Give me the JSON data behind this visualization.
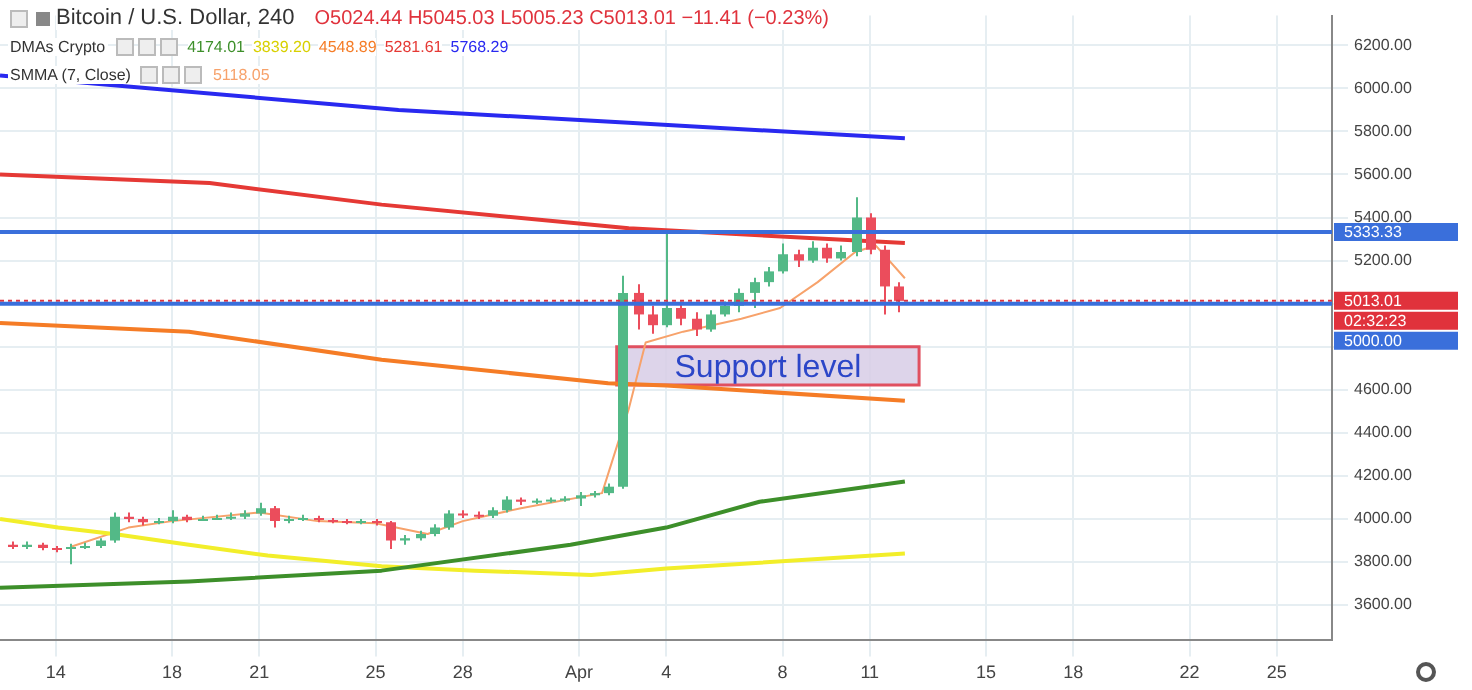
{
  "chart_data": {
    "type": "candlestick",
    "title": "Bitcoin / U.S. Dollar, 240",
    "subtitle": "O5024.44 H5045.03 L5005.23 C5013.01 −11.41 (−0.23%)",
    "x": [
      "--03-12T12:00",
      "--03-13",
      "--03-13T12:00",
      "--03-14",
      "--03-14T12:00",
      "--03-15",
      "--03-15T12:00",
      "--03-16",
      "--03-16T12:00",
      "--03-17",
      "--03-17T12:00",
      "--03-18",
      "--03-18T12:00",
      "--03-19",
      "--03-19T12:00",
      "--03-20",
      "--03-20T12:00",
      "--03-21",
      "--03-21T12:00",
      "--03-22",
      "--03-22T12:00",
      "--03-23",
      "--03-23T12:00",
      "--03-24",
      "--03-24T12:00",
      "--03-25",
      "--03-25T12:00",
      "--03-26",
      "--03-26T12:00",
      "--03-27",
      "--03-27T12:00",
      "--03-28",
      "--03-28T12:00",
      "--03-29",
      "--03-29T12:00",
      "--03-30",
      "--03-30T12:00",
      "--03-31",
      "--03-31T12:00",
      "--04-01",
      "--04-01T12:00",
      "--04-02",
      "--04-02T12:00",
      "--04-03",
      "--04-03T12:00",
      "--04-04",
      "--04-04T12:00",
      "--04-05",
      "--04-05T12:00",
      "--04-06",
      "--04-06T12:00",
      "--04-07",
      "--04-07T12:00",
      "--04-08",
      "--04-08T12:00",
      "--04-09",
      "--04-09T12:00",
      "--04-10",
      "--04-10T12:00",
      "--04-11",
      "--04-11T12:00",
      "--04-12"
    ],
    "ohlc": [
      [
        3880,
        3895,
        3860,
        3870
      ],
      [
        3870,
        3895,
        3860,
        3880
      ],
      [
        3880,
        3890,
        3855,
        3865
      ],
      [
        3865,
        3875,
        3845,
        3860
      ],
      [
        3860,
        3885,
        3790,
        3870
      ],
      [
        3870,
        3890,
        3860,
        3875
      ],
      [
        3875,
        3910,
        3865,
        3900
      ],
      [
        3900,
        4030,
        3890,
        4010
      ],
      [
        4010,
        4030,
        3985,
        4000
      ],
      [
        4000,
        4010,
        3970,
        3985
      ],
      [
        3985,
        4005,
        3975,
        3990
      ],
      [
        3990,
        4040,
        3980,
        4010
      ],
      [
        4010,
        4020,
        3985,
        3995
      ],
      [
        3995,
        4015,
        3990,
        4000
      ],
      [
        4000,
        4020,
        3995,
        4005
      ],
      [
        4005,
        4030,
        3995,
        4010
      ],
      [
        4010,
        4040,
        4000,
        4025
      ],
      [
        4025,
        4075,
        4015,
        4050
      ],
      [
        4050,
        4060,
        3960,
        3990
      ],
      [
        3990,
        4015,
        3980,
        4000
      ],
      [
        4000,
        4020,
        3990,
        4005
      ],
      [
        4005,
        4015,
        3985,
        3995
      ],
      [
        3995,
        4005,
        3980,
        3990
      ],
      [
        3990,
        4000,
        3975,
        3985
      ],
      [
        3985,
        4000,
        3975,
        3990
      ],
      [
        3990,
        4000,
        3970,
        3985
      ],
      [
        3985,
        3990,
        3860,
        3900
      ],
      [
        3900,
        3925,
        3880,
        3910
      ],
      [
        3910,
        3945,
        3900,
        3930
      ],
      [
        3930,
        3975,
        3920,
        3960
      ],
      [
        3960,
        4040,
        3950,
        4025
      ],
      [
        4025,
        4040,
        4005,
        4020
      ],
      [
        4020,
        4035,
        4000,
        4015
      ],
      [
        4015,
        4055,
        4005,
        4040
      ],
      [
        4040,
        4105,
        4030,
        4090
      ],
      [
        4090,
        4100,
        4065,
        4080
      ],
      [
        4080,
        4095,
        4070,
        4085
      ],
      [
        4085,
        4100,
        4075,
        4090
      ],
      [
        4090,
        4105,
        4080,
        4095
      ],
      [
        4095,
        4125,
        4060,
        4110
      ],
      [
        4110,
        4130,
        4100,
        4120
      ],
      [
        4120,
        4165,
        4110,
        4150
      ],
      [
        4150,
        5130,
        4140,
        5050
      ],
      [
        5050,
        5090,
        4880,
        4950
      ],
      [
        4950,
        4990,
        4860,
        4900
      ],
      [
        4900,
        5340,
        4890,
        4980
      ],
      [
        4980,
        5010,
        4900,
        4930
      ],
      [
        4930,
        4960,
        4850,
        4880
      ],
      [
        4880,
        4970,
        4870,
        4950
      ],
      [
        4950,
        5010,
        4940,
        4990
      ],
      [
        4990,
        5070,
        4960,
        5050
      ],
      [
        5050,
        5120,
        4980,
        5100
      ],
      [
        5100,
        5170,
        5080,
        5150
      ],
      [
        5150,
        5280,
        5140,
        5230
      ],
      [
        5230,
        5250,
        5170,
        5200
      ],
      [
        5200,
        5290,
        5190,
        5260
      ],
      [
        5260,
        5280,
        5190,
        5210
      ],
      [
        5210,
        5270,
        5200,
        5240
      ],
      [
        5240,
        5494,
        5220,
        5400
      ],
      [
        5400,
        5420,
        5230,
        5250
      ],
      [
        5250,
        5270,
        4950,
        5080
      ],
      [
        5080,
        5100,
        4960,
        5013.01
      ]
    ],
    "series": [
      {
        "type": "line",
        "color": "#3d8f2a",
        "x": [
          "--03-12T02:00",
          "--03-18T14:00",
          "--03-25T05:00",
          "--03-31T17:00",
          "--04-04",
          "--04-07T05:00",
          "--04-12T05:00"
        ],
        "values": [
          3680,
          3710,
          3760,
          3880,
          3960,
          4080,
          4174.01
        ]
      },
      {
        "type": "line",
        "color": "#f2ee2a",
        "x": [
          "--03-12T02:00",
          "--03-14T02:00",
          "--03-16",
          "--03-18T14:00",
          "--03-21T07:00",
          "--03-25T05:00",
          "--03-28T10:00",
          "--04-01T10:00",
          "--04-04",
          "--04-12T05:00"
        ],
        "values": [
          4000,
          3960,
          3930,
          3880,
          3830,
          3780,
          3760,
          3740,
          3770,
          3839.2
        ]
      },
      {
        "type": "line",
        "color": "#f57c26",
        "x": [
          "--03-12T02:00",
          "--03-18T14:00",
          "--03-25T05:00",
          "--04-02",
          "--04-04",
          "--04-12T05:00"
        ],
        "values": [
          4910,
          4870,
          4740,
          4630,
          4620,
          4548.89
        ]
      },
      {
        "type": "line",
        "color": "#e53935",
        "x": [
          "--03-12T02:00",
          "--03-19T07:00",
          "--03-25T05:00",
          "--04-02T17:00",
          "--04-12T05:00"
        ],
        "values": [
          5600,
          5560,
          5460,
          5350,
          5281.61
        ]
      },
      {
        "type": "line",
        "color": "#2929f0",
        "x": [
          "--03-12T02:00",
          "--03-25T19:00",
          "--04-02T17:00",
          "--04-12T05:00"
        ],
        "values": [
          6060,
          5900,
          5840,
          5768.29
        ]
      },
      {
        "type": "line",
        "color": "#f7a26b",
        "x": [
          "--03-14T12:00",
          "--03-16T12:00",
          "--03-18",
          "--03-21",
          "--03-23",
          "--03-25",
          "--03-26T19:00",
          "--03-28",
          "--03-30",
          "--04-01T19:00",
          "--04-02T17:00",
          "--04-03T07:00",
          "--04-04T14:00",
          "--04-06T14:00",
          "--04-07T22:00",
          "--04-09T05:00",
          "--04-10T12:00",
          "--04-11T05:00",
          "--04-12T05:00"
        ],
        "values": [
          3870,
          3960,
          3990,
          4030,
          3990,
          3980,
          3930,
          3990,
          4050,
          4120,
          4510,
          4820,
          4870,
          4930,
          4980,
          5100,
          5240,
          5270,
          5118.05
        ]
      }
    ],
    "xlim": [
      "--03-12T02:00",
      "--04-26T21:36"
    ],
    "xticks": [
      {
        "value": "--03-14",
        "label": "14"
      },
      {
        "value": "--03-18",
        "label": "18"
      },
      {
        "value": "--03-21",
        "label": "21"
      },
      {
        "value": "--03-25",
        "label": "25"
      },
      {
        "value": "--03-28",
        "label": "28"
      },
      {
        "value": "--04-01",
        "label": "Apr"
      },
      {
        "value": "--04-04",
        "label": "4"
      },
      {
        "value": "--04-08",
        "label": "8"
      },
      {
        "value": "--04-11",
        "label": "11"
      },
      {
        "value": "--04-15",
        "label": "15"
      },
      {
        "value": "--04-18",
        "label": "18"
      },
      {
        "value": "--04-22",
        "label": "22"
      },
      {
        "value": "--04-25",
        "label": "25"
      }
    ],
    "ylim": [
      3436,
      6338
    ],
    "yticks": [
      {
        "value": 3600,
        "label": "3600.00"
      },
      {
        "value": 3800,
        "label": "3800.00"
      },
      {
        "value": 4000,
        "label": "4000.00"
      },
      {
        "value": 4200,
        "label": "4200.00"
      },
      {
        "value": 4400,
        "label": "4400.00"
      },
      {
        "value": 4600,
        "label": "4600.00"
      },
      {
        "value": 4800,
        "label": null
      },
      {
        "value": 5000,
        "label": null
      },
      {
        "value": 5200,
        "label": "5200.00"
      },
      {
        "value": 5400,
        "label": "5400.00"
      },
      {
        "value": 5600,
        "label": "5600.00"
      },
      {
        "value": 5800,
        "label": "5800.00"
      },
      {
        "value": 6000,
        "label": "6000.00"
      },
      {
        "value": 6200,
        "label": "6200.00"
      }
    ],
    "ref_lines": [
      {
        "axis": "y",
        "value": 5333.33,
        "label": "5333.33",
        "color": "#3a6fdb",
        "line_style": "solid"
      },
      {
        "axis": "y",
        "value": 5013.01,
        "label": "5013.01",
        "color": "#e0323c",
        "line_style": "dotted"
      },
      {
        "axis": "y",
        "value": 5000,
        "label": "5000.00",
        "color": "#3a6fdb",
        "line_style": "solid"
      }
    ],
    "bands": [
      {
        "axis": "y",
        "from": 4622,
        "to": 4800,
        "label": "Support level",
        "color": "#d7cce6"
      }
    ],
    "annotations": [
      "DMAs Crypto",
      "SMMA (7, Close)",
      "02:32:23",
      "4174.01",
      "3839.20",
      "4548.89",
      "5281.61",
      "5768.29",
      "5118.05"
    ],
    "grid": true,
    "legend": false
  }
}
